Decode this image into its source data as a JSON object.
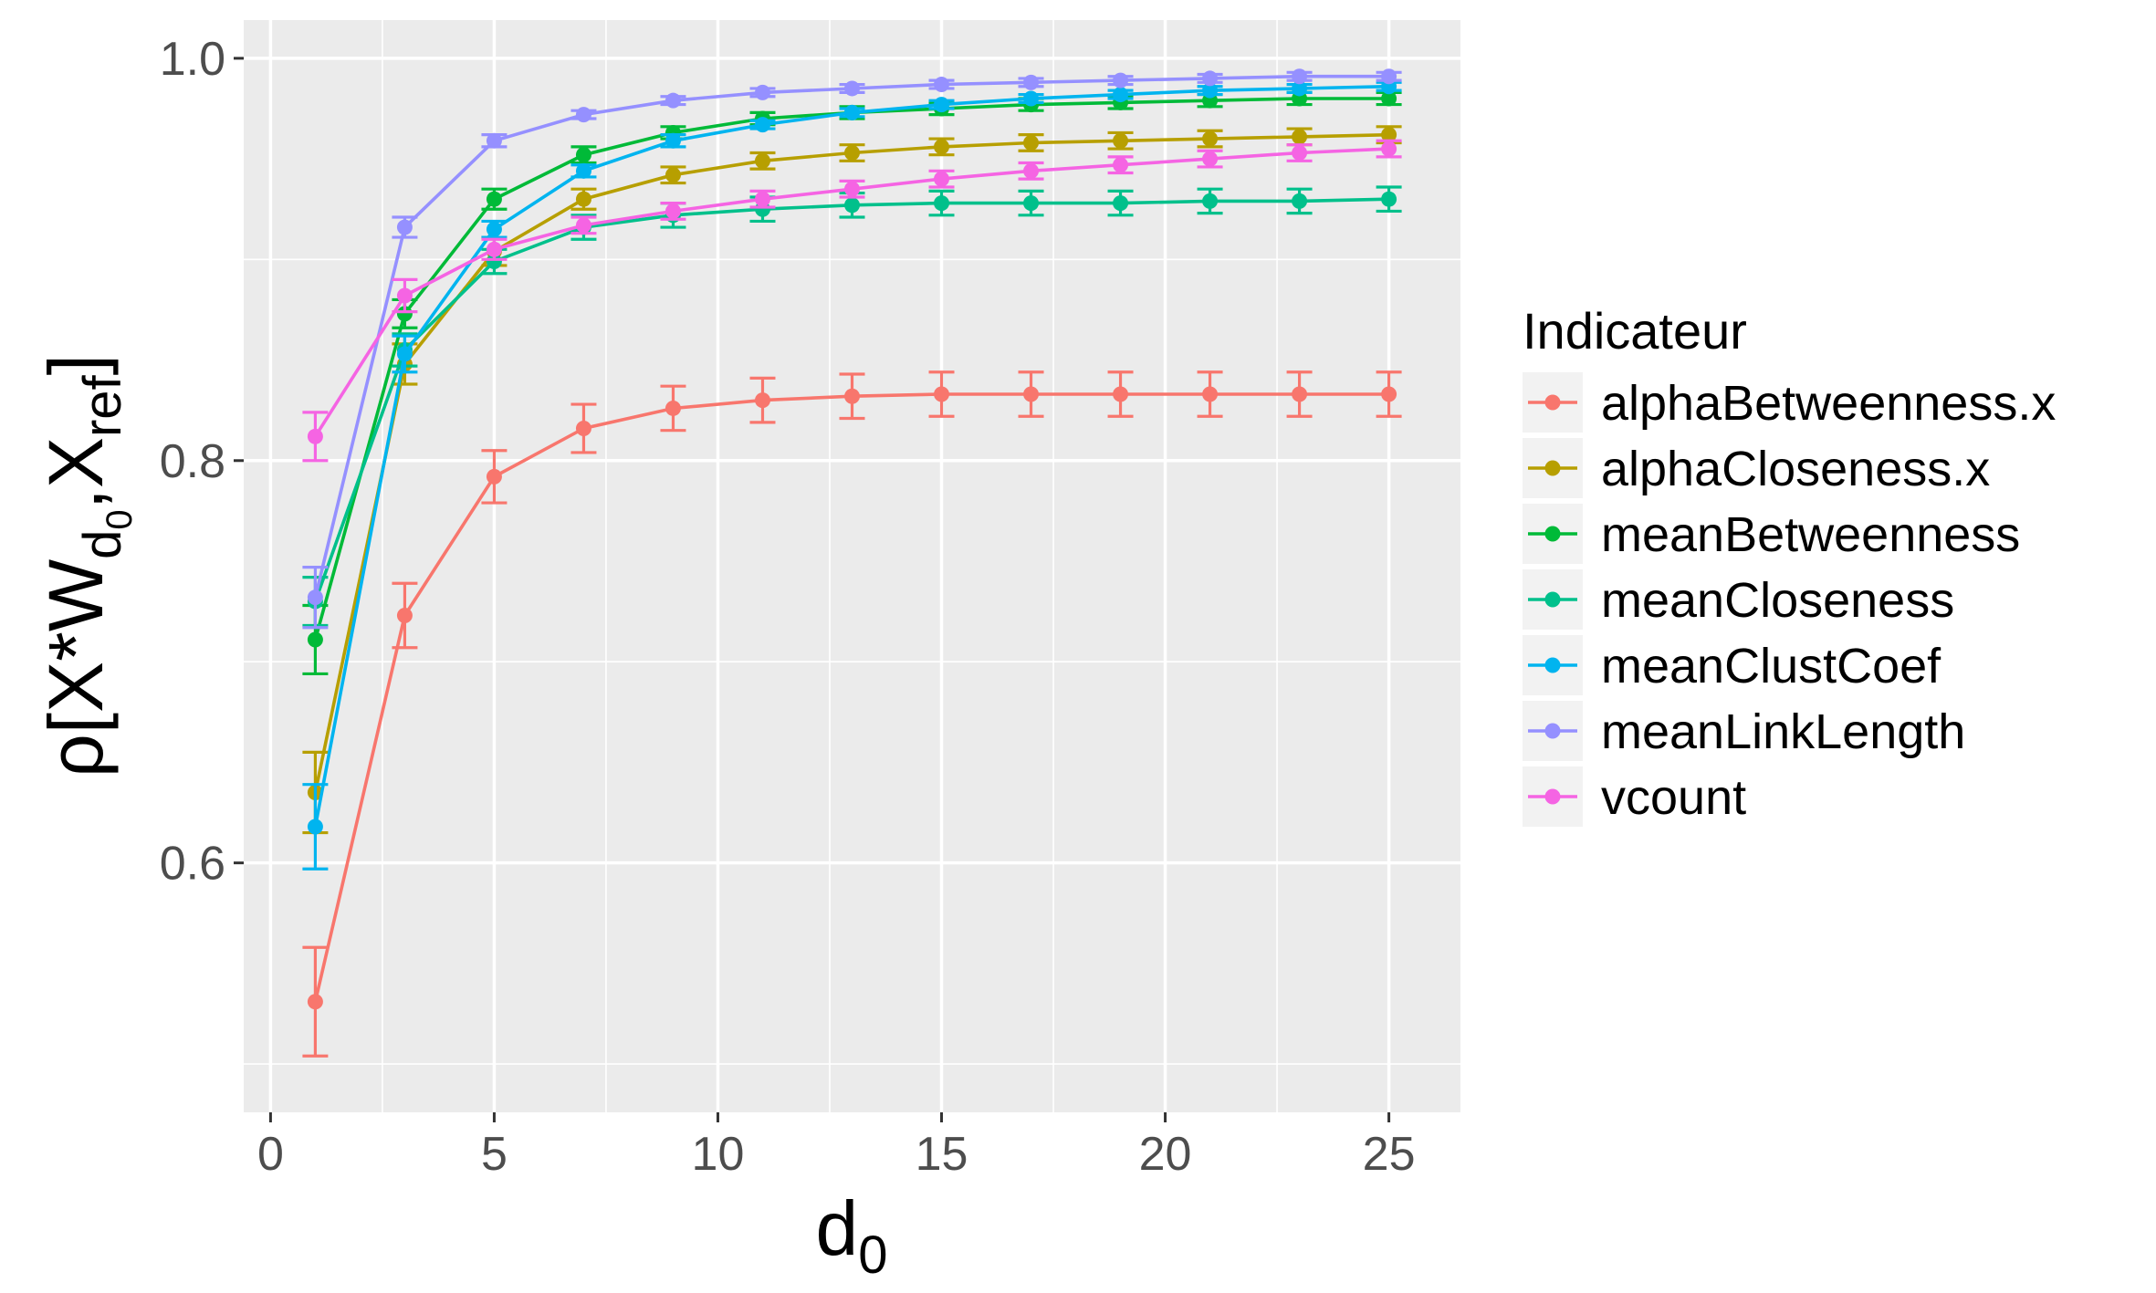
{
  "chart_data": {
    "type": "line",
    "x": [
      1,
      3,
      5,
      7,
      9,
      11,
      13,
      15,
      17,
      19,
      21,
      23,
      25
    ],
    "xlim": [
      -0.6,
      26.6
    ],
    "ylim": [
      0.476,
      1.019
    ],
    "x_ticks": [
      "0",
      "5",
      "10",
      "15",
      "20",
      "25"
    ],
    "x_tick_values": [
      0,
      5,
      10,
      15,
      20,
      25
    ],
    "y_ticks": [
      "0.6",
      "0.8",
      "1.0"
    ],
    "y_tick_values": [
      0.6,
      0.8,
      1.0
    ],
    "y_minor_values": [
      0.5,
      0.7,
      0.9
    ],
    "x_minor_values": [
      2.5,
      7.5,
      12.5,
      17.5,
      22.5
    ],
    "xlabel": {
      "base": "d",
      "sub": "0"
    },
    "ylabel": {
      "prefix": "ρ[X*W",
      "sub1": "d",
      "subsub": "0",
      "mid": ",X",
      "sub2": "ref",
      "suffix": "]"
    },
    "grid": true,
    "error_bars": true,
    "legend_title": "Indicateur",
    "legend_position": "right",
    "series": [
      {
        "name": "alphaBetweenness.x",
        "color": "#F8766D",
        "values": [
          0.531,
          0.723,
          0.792,
          0.816,
          0.826,
          0.83,
          0.832,
          0.833,
          0.833,
          0.833,
          0.833,
          0.833,
          0.833
        ],
        "errors": [
          0.027,
          0.016,
          0.013,
          0.012,
          0.011,
          0.011,
          0.011,
          0.011,
          0.011,
          0.011,
          0.011,
          0.011,
          0.011
        ]
      },
      {
        "name": "alphaCloseness.x",
        "color": "#B79F00",
        "values": [
          0.635,
          0.848,
          0.904,
          0.93,
          0.942,
          0.949,
          0.953,
          0.956,
          0.958,
          0.959,
          0.96,
          0.961,
          0.962
        ],
        "errors": [
          0.02,
          0.01,
          0.007,
          0.005,
          0.004,
          0.004,
          0.004,
          0.004,
          0.004,
          0.004,
          0.004,
          0.004,
          0.004
        ]
      },
      {
        "name": "meanBetweenness",
        "color": "#00BA38",
        "values": [
          0.711,
          0.873,
          0.93,
          0.952,
          0.963,
          0.97,
          0.973,
          0.975,
          0.977,
          0.978,
          0.979,
          0.98,
          0.98
        ],
        "errors": [
          0.017,
          0.007,
          0.005,
          0.004,
          0.003,
          0.003,
          0.003,
          0.003,
          0.003,
          0.003,
          0.003,
          0.003,
          0.003
        ]
      },
      {
        "name": "meanCloseness",
        "color": "#00C08B",
        "values": [
          0.73,
          0.855,
          0.899,
          0.916,
          0.922,
          0.925,
          0.927,
          0.928,
          0.928,
          0.928,
          0.929,
          0.929,
          0.93
        ],
        "errors": [
          0.012,
          0.008,
          0.006,
          0.006,
          0.006,
          0.006,
          0.006,
          0.006,
          0.006,
          0.006,
          0.006,
          0.006,
          0.006
        ]
      },
      {
        "name": "meanClustCoef",
        "color": "#00B4EF",
        "values": [
          0.618,
          0.853,
          0.915,
          0.944,
          0.959,
          0.967,
          0.973,
          0.977,
          0.98,
          0.982,
          0.984,
          0.985,
          0.986
        ],
        "errors": [
          0.021,
          0.009,
          0.004,
          0.003,
          0.003,
          0.002,
          0.002,
          0.002,
          0.002,
          0.002,
          0.002,
          0.002,
          0.002
        ]
      },
      {
        "name": "meanLinkLength",
        "color": "#9590FF",
        "values": [
          0.732,
          0.916,
          0.959,
          0.972,
          0.979,
          0.983,
          0.985,
          0.987,
          0.988,
          0.989,
          0.99,
          0.991,
          0.991
        ],
        "errors": [
          0.015,
          0.005,
          0.003,
          0.002,
          0.002,
          0.002,
          0.002,
          0.002,
          0.002,
          0.002,
          0.002,
          0.002,
          0.002
        ]
      },
      {
        "name": "vcount",
        "color": "#F564E3",
        "values": [
          0.812,
          0.882,
          0.905,
          0.917,
          0.924,
          0.93,
          0.935,
          0.94,
          0.944,
          0.947,
          0.95,
          0.953,
          0.955
        ],
        "errors": [
          0.012,
          0.008,
          0.005,
          0.004,
          0.004,
          0.004,
          0.004,
          0.004,
          0.004,
          0.004,
          0.004,
          0.004,
          0.004
        ]
      }
    ]
  }
}
